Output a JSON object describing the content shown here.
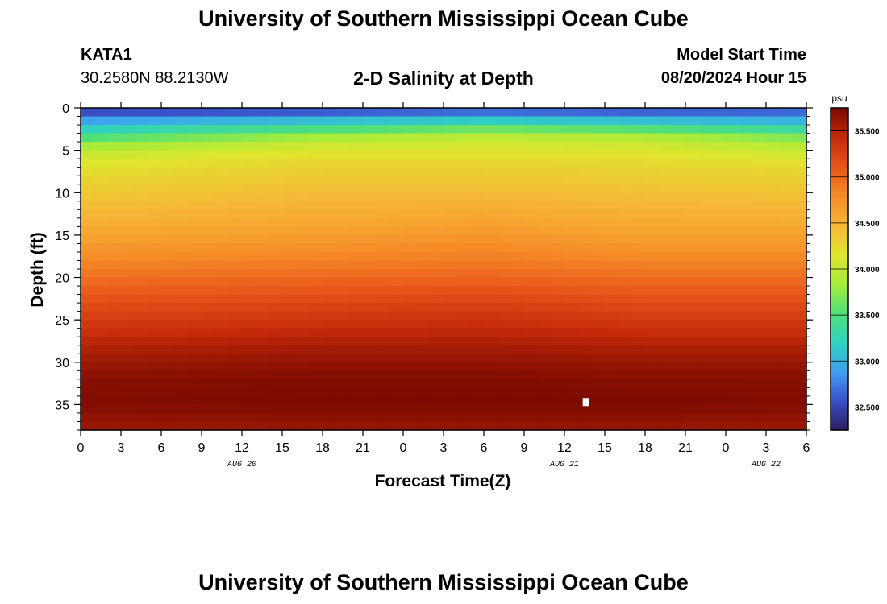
{
  "header": {
    "title": "University of Southern Mississippi Ocean Cube",
    "station": "KATA1",
    "coordinates": "30.2580N  88.2130W",
    "plot_title": "2-D Salinity at Depth",
    "start_label": "Model Start Time",
    "start_value": "08/20/2024 Hour 15"
  },
  "footer": {
    "title": "University of Southern Mississippi Ocean Cube"
  },
  "chart_data": {
    "type": "heatmap",
    "title": "2-D Salinity at Depth",
    "xlabel": "Forecast Time(Z)",
    "ylabel": "Depth (ft)",
    "x_tick_labels": [
      "0",
      "3",
      "6",
      "9",
      "12",
      "15",
      "18",
      "21",
      "0",
      "3",
      "6",
      "9",
      "12",
      "15",
      "18",
      "21",
      "0",
      "3",
      "6"
    ],
    "x_range_hours": [
      0,
      54
    ],
    "date_labels": [
      {
        "hour": 12,
        "label": "AUG 20"
      },
      {
        "hour": 36,
        "label": "AUG 21"
      },
      {
        "hour": 51,
        "label": "AUG 22"
      }
    ],
    "y_ticks": [
      0,
      5,
      10,
      15,
      20,
      25,
      30,
      35
    ],
    "y_range": [
      0,
      38
    ],
    "y_inverted": true,
    "colorbar": {
      "unit": "psu",
      "range": [
        32.25,
        35.75
      ],
      "ticks": [
        "32.500",
        "33.000",
        "33.500",
        "34.000",
        "34.500",
        "35.000",
        "35.500"
      ],
      "colors": [
        "#2a1e5c",
        "#3a4fc8",
        "#3fa0f2",
        "#2fd3c0",
        "#4ee07a",
        "#a8ec3a",
        "#e0e62e",
        "#f6b737",
        "#f58a28",
        "#e8561a",
        "#c42a0a",
        "#7a0a00"
      ]
    },
    "depths_ft": [
      0,
      1,
      2,
      3,
      4,
      5,
      6,
      7,
      8,
      10,
      12,
      15,
      18,
      20,
      22,
      25,
      28,
      30,
      32,
      35,
      38
    ],
    "profile_times_h": [
      0,
      18,
      30,
      42,
      54
    ],
    "salinity_profiles_psu": [
      [
        32.35,
        32.75,
        33.05,
        33.35,
        33.7,
        33.95,
        34.1,
        34.2,
        34.25,
        34.35,
        34.45,
        34.6,
        34.8,
        34.95,
        35.1,
        35.3,
        35.5,
        35.6,
        35.7,
        35.72,
        35.6
      ],
      [
        32.4,
        32.85,
        33.3,
        33.7,
        34.0,
        34.15,
        34.25,
        34.3,
        34.35,
        34.45,
        34.52,
        34.65,
        34.85,
        35.0,
        35.15,
        35.35,
        35.55,
        35.65,
        35.72,
        35.74,
        35.62
      ],
      [
        32.45,
        32.95,
        33.4,
        33.9,
        34.05,
        34.15,
        34.25,
        34.3,
        34.35,
        34.45,
        34.55,
        34.7,
        34.88,
        35.02,
        35.18,
        35.38,
        35.55,
        35.65,
        35.72,
        35.74,
        35.62
      ],
      [
        32.45,
        32.85,
        33.3,
        33.8,
        34.0,
        34.15,
        34.22,
        34.28,
        34.32,
        34.42,
        34.5,
        34.62,
        34.82,
        34.97,
        35.12,
        35.32,
        35.52,
        35.62,
        35.7,
        35.74,
        35.62
      ],
      [
        32.5,
        32.85,
        33.15,
        33.55,
        33.85,
        34.0,
        34.15,
        34.25,
        34.3,
        34.4,
        34.48,
        34.62,
        34.82,
        34.97,
        35.12,
        35.32,
        35.52,
        35.62,
        35.7,
        35.72,
        35.6
      ]
    ]
  }
}
